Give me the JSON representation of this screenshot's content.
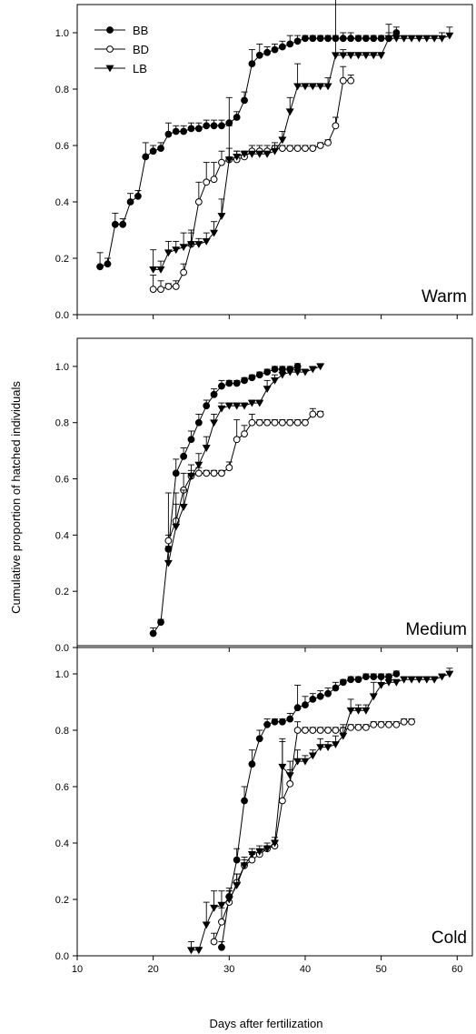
{
  "figure": {
    "ylabel": "Cumulative proportion of hatched individuals",
    "xlabel": "Days after fertilization",
    "x_ticks": [
      10,
      20,
      30,
      40,
      50,
      60
    ],
    "y_ticks": [
      0.0,
      0.2,
      0.4,
      0.6,
      0.8,
      1.0
    ],
    "y_tick_labels": [
      "0.0",
      "0.2",
      "0.4",
      "0.6",
      "0.8",
      "1.0"
    ],
    "legend": [
      {
        "key": "BB",
        "label": "BB",
        "marker": "filled-circle"
      },
      {
        "key": "BD",
        "label": "BD",
        "marker": "open-circle"
      },
      {
        "key": "LB",
        "label": "LB",
        "marker": "filled-triangle-down"
      }
    ]
  },
  "chart_data": [
    {
      "type": "line",
      "panel_label": "Warm",
      "xlim": [
        10,
        62
      ],
      "ylim": [
        0,
        1.1
      ],
      "series": [
        {
          "name": "BB",
          "x": [
            13,
            14,
            15,
            16,
            17,
            18,
            19,
            20,
            21,
            22,
            23,
            24,
            25,
            26,
            27,
            28,
            29,
            30,
            31,
            32,
            33,
            34,
            35,
            36,
            37,
            38,
            39,
            40,
            41,
            42,
            43,
            44,
            45,
            46,
            47,
            48,
            49,
            50,
            51,
            52
          ],
          "y": [
            0.17,
            0.18,
            0.32,
            0.32,
            0.4,
            0.42,
            0.56,
            0.58,
            0.59,
            0.64,
            0.65,
            0.65,
            0.66,
            0.66,
            0.67,
            0.67,
            0.67,
            0.68,
            0.7,
            0.76,
            0.89,
            0.92,
            0.93,
            0.94,
            0.95,
            0.96,
            0.97,
            0.98,
            0.98,
            0.98,
            0.98,
            0.98,
            0.98,
            0.98,
            0.98,
            0.98,
            0.98,
            0.98,
            0.98,
            1.0
          ],
          "err": [
            0.05,
            0.02,
            0.04,
            0.02,
            0.03,
            0.02,
            0.05,
            0.02,
            0.02,
            0.04,
            0.02,
            0.02,
            0.02,
            0.02,
            0.02,
            0.02,
            0.02,
            0.09,
            0.02,
            0.03,
            0.05,
            0.04,
            0.02,
            0.02,
            0.02,
            0.03,
            0.02,
            0.01,
            0.01,
            0.01,
            0.01,
            0.01,
            0.02,
            0.02,
            0.01,
            0.01,
            0.01,
            0.01,
            0.02,
            0.02
          ]
        },
        {
          "name": "BD",
          "x": [
            20,
            21,
            22,
            23,
            24,
            25,
            26,
            27,
            28,
            29,
            30,
            31,
            32,
            33,
            34,
            35,
            36,
            37,
            38,
            39,
            40,
            41,
            42,
            43,
            44,
            45,
            46
          ],
          "y": [
            0.09,
            0.09,
            0.1,
            0.1,
            0.15,
            0.25,
            0.4,
            0.47,
            0.48,
            0.54,
            0.55,
            0.55,
            0.56,
            0.58,
            0.58,
            0.58,
            0.59,
            0.59,
            0.59,
            0.59,
            0.59,
            0.59,
            0.6,
            0.61,
            0.67,
            0.83,
            0.83
          ],
          "err": [
            0.05,
            0.03,
            0.01,
            0.02,
            0.03,
            0.04,
            0.07,
            0.07,
            0.06,
            0.04,
            0.04,
            0.03,
            0.02,
            0.02,
            0.02,
            0.02,
            0.02,
            0.01,
            0.01,
            0.01,
            0.01,
            0.01,
            0.01,
            0.01,
            0.03,
            0.05,
            0.02
          ]
        },
        {
          "name": "LB",
          "x": [
            20,
            21,
            22,
            23,
            24,
            25,
            26,
            27,
            28,
            29,
            30,
            31,
            32,
            33,
            34,
            35,
            36,
            37,
            38,
            39,
            40,
            41,
            42,
            43,
            44,
            45,
            46,
            47,
            48,
            49,
            50,
            51,
            52,
            53,
            54,
            55,
            56,
            57,
            58,
            59
          ],
          "y": [
            0.16,
            0.16,
            0.22,
            0.23,
            0.24,
            0.25,
            0.25,
            0.26,
            0.29,
            0.35,
            0.55,
            0.56,
            0.57,
            0.57,
            0.57,
            0.57,
            0.58,
            0.62,
            0.72,
            0.81,
            0.81,
            0.81,
            0.81,
            0.81,
            0.92,
            0.92,
            0.92,
            0.92,
            0.92,
            0.92,
            0.92,
            0.98,
            0.98,
            0.98,
            0.98,
            0.98,
            0.98,
            0.98,
            0.98,
            0.99
          ],
          "err": [
            0.07,
            0.03,
            0.04,
            0.03,
            0.05,
            0.05,
            0.02,
            0.03,
            0.04,
            0.06,
            0.12,
            0.02,
            0.01,
            0.01,
            0.01,
            0.01,
            0.02,
            0.03,
            0.05,
            0.08,
            0.01,
            0.01,
            0.01,
            0.03,
            0.25,
            0.02,
            0.01,
            0.01,
            0.01,
            0.01,
            0.01,
            0.05,
            0.01,
            0.01,
            0.01,
            0.01,
            0.01,
            0.01,
            0.02,
            0.03
          ]
        }
      ]
    },
    {
      "type": "line",
      "panel_label": "Medium",
      "xlim": [
        10,
        62
      ],
      "ylim": [
        0,
        1.1
      ],
      "series": [
        {
          "name": "BB",
          "x": [
            20,
            21,
            22,
            23,
            24,
            25,
            26,
            27,
            28,
            29,
            30,
            31,
            32,
            33,
            34,
            35,
            36,
            37,
            38,
            39
          ],
          "y": [
            0.05,
            0.09,
            0.35,
            0.62,
            0.68,
            0.74,
            0.8,
            0.86,
            0.9,
            0.93,
            0.94,
            0.94,
            0.95,
            0.96,
            0.97,
            0.98,
            0.99,
            0.99,
            0.99,
            1.0
          ],
          "err": [
            0.02,
            0.01,
            0.05,
            0.05,
            0.03,
            0.03,
            0.03,
            0.02,
            0.02,
            0.02,
            0.01,
            0.01,
            0.01,
            0.01,
            0.01,
            0.01,
            0.01,
            0.01,
            0.01,
            0.01
          ]
        },
        {
          "name": "BD",
          "x": [
            22,
            23,
            24,
            25,
            26,
            27,
            28,
            29,
            30,
            31,
            32,
            33,
            34,
            35,
            36,
            37,
            38,
            39,
            40,
            41,
            42
          ],
          "y": [
            0.38,
            0.45,
            0.56,
            0.61,
            0.62,
            0.62,
            0.62,
            0.62,
            0.64,
            0.74,
            0.76,
            0.8,
            0.8,
            0.8,
            0.8,
            0.8,
            0.8,
            0.8,
            0.8,
            0.83,
            0.83
          ],
          "err": [
            0.17,
            0.1,
            0.06,
            0.02,
            0.02,
            0.01,
            0.01,
            0.01,
            0.02,
            0.07,
            0.03,
            0.03,
            0.01,
            0.01,
            0.01,
            0.01,
            0.01,
            0.01,
            0.01,
            0.02,
            0.01
          ]
        },
        {
          "name": "LB",
          "x": [
            22,
            23,
            24,
            25,
            26,
            27,
            28,
            29,
            30,
            31,
            32,
            33,
            34,
            35,
            36,
            37,
            38,
            39,
            40,
            41,
            42
          ],
          "y": [
            0.3,
            0.43,
            0.5,
            0.61,
            0.65,
            0.71,
            0.8,
            0.85,
            0.86,
            0.86,
            0.86,
            0.87,
            0.87,
            0.92,
            0.95,
            0.97,
            0.98,
            0.98,
            0.98,
            0.99,
            1.0
          ],
          "err": [
            0.06,
            0.08,
            0.06,
            0.04,
            0.04,
            0.04,
            0.03,
            0.02,
            0.01,
            0.01,
            0.01,
            0.01,
            0.01,
            0.03,
            0.02,
            0.01,
            0.01,
            0.01,
            0.01,
            0.01,
            0.01
          ]
        }
      ]
    },
    {
      "type": "line",
      "panel_label": "Cold",
      "xlim": [
        10,
        62
      ],
      "ylim": [
        0,
        1.1
      ],
      "series": [
        {
          "name": "BB",
          "x": [
            29,
            30,
            31,
            32,
            33,
            34,
            35,
            36,
            37,
            38,
            39,
            40,
            41,
            42,
            43,
            44,
            45,
            46,
            47,
            48,
            49,
            50,
            51,
            52
          ],
          "y": [
            0.03,
            0.21,
            0.34,
            0.55,
            0.68,
            0.77,
            0.82,
            0.83,
            0.83,
            0.84,
            0.88,
            0.89,
            0.91,
            0.92,
            0.93,
            0.95,
            0.97,
            0.98,
            0.98,
            0.99,
            0.99,
            0.99,
            0.99,
            1.0
          ],
          "err": [
            0.02,
            0.03,
            0.04,
            0.05,
            0.05,
            0.03,
            0.02,
            0.01,
            0.01,
            0.02,
            0.08,
            0.03,
            0.02,
            0.02,
            0.02,
            0.02,
            0.01,
            0.01,
            0.01,
            0.01,
            0.01,
            0.01,
            0.01,
            0.01
          ]
        },
        {
          "name": "BD",
          "x": [
            28,
            29,
            30,
            31,
            32,
            33,
            34,
            35,
            36,
            37,
            38,
            39,
            40,
            41,
            42,
            43,
            44,
            45,
            46,
            47,
            48,
            49,
            50,
            51,
            52,
            53,
            54
          ],
          "y": [
            0.05,
            0.12,
            0.19,
            0.26,
            0.32,
            0.34,
            0.36,
            0.38,
            0.39,
            0.55,
            0.61,
            0.8,
            0.8,
            0.8,
            0.8,
            0.8,
            0.8,
            0.8,
            0.81,
            0.81,
            0.81,
            0.82,
            0.82,
            0.82,
            0.82,
            0.83,
            0.83
          ],
          "err": [
            0.03,
            0.05,
            0.04,
            0.03,
            0.02,
            0.02,
            0.02,
            0.01,
            0.02,
            0.21,
            0.05,
            0.03,
            0.01,
            0.01,
            0.01,
            0.01,
            0.01,
            0.01,
            0.01,
            0.01,
            0.01,
            0.01,
            0.01,
            0.01,
            0.01,
            0.01,
            0.01
          ]
        },
        {
          "name": "LB",
          "x": [
            25,
            26,
            27,
            28,
            29,
            30,
            31,
            32,
            33,
            34,
            35,
            36,
            37,
            38,
            39,
            40,
            41,
            42,
            43,
            44,
            45,
            46,
            47,
            48,
            49,
            50,
            51,
            52,
            53,
            54,
            55,
            56,
            57,
            58,
            59
          ],
          "y": [
            0.02,
            0.02,
            0.11,
            0.17,
            0.18,
            0.2,
            0.25,
            0.32,
            0.36,
            0.37,
            0.38,
            0.4,
            0.67,
            0.64,
            0.69,
            0.69,
            0.71,
            0.74,
            0.74,
            0.75,
            0.78,
            0.87,
            0.87,
            0.87,
            0.92,
            0.96,
            0.97,
            0.97,
            0.98,
            0.98,
            0.98,
            0.98,
            0.98,
            0.99,
            1.0
          ],
          "err": [
            0.03,
            0.01,
            0.08,
            0.06,
            0.05,
            0.03,
            0.04,
            0.03,
            0.02,
            0.02,
            0.02,
            0.02,
            0.1,
            0.05,
            0.04,
            0.02,
            0.02,
            0.03,
            0.02,
            0.03,
            0.04,
            0.04,
            0.02,
            0.02,
            0.05,
            0.03,
            0.02,
            0.01,
            0.01,
            0.01,
            0.01,
            0.01,
            0.01,
            0.01,
            0.02
          ]
        }
      ]
    }
  ]
}
